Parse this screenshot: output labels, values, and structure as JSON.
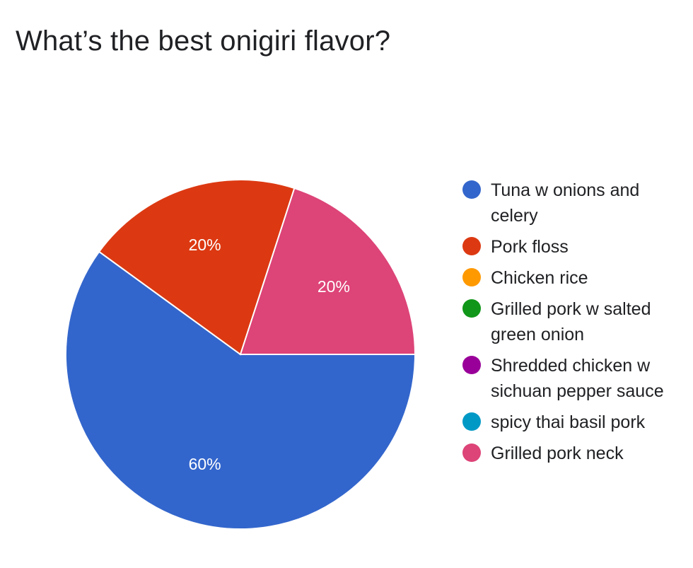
{
  "title": "What’s the best onigiri flavor?",
  "chart_data": {
    "type": "pie",
    "title": "What’s the best onigiri flavor?",
    "legend_position": "right",
    "categories": [
      "Tuna w onions and celery",
      "Pork floss",
      "Chicken rice",
      "Grilled pork w salted green onion",
      "Shredded chicken w sichuan pepper sauce",
      "spicy thai basil pork",
      "Grilled pork neck"
    ],
    "values": [
      60,
      20,
      0,
      0,
      0,
      0,
      20
    ],
    "value_labels": [
      "60%",
      "20%",
      "",
      "",
      "",
      "",
      "20%"
    ],
    "colors": [
      "#3366cc",
      "#dc3912",
      "#ff9900",
      "#109618",
      "#990099",
      "#0099c6",
      "#dd4477"
    ]
  }
}
